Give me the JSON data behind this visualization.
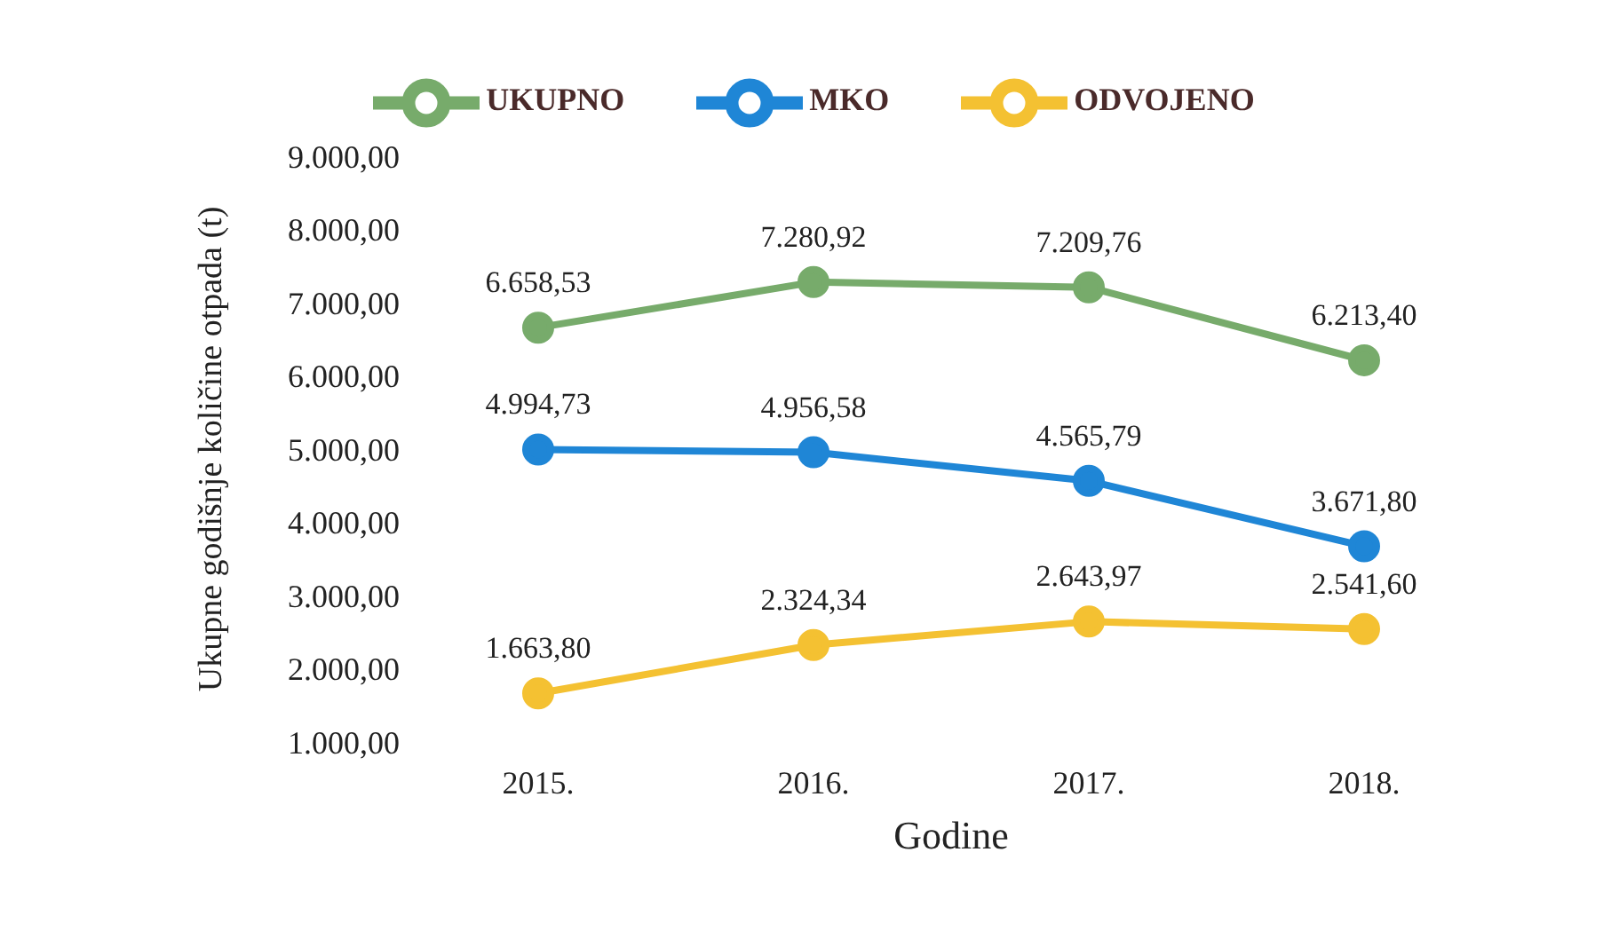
{
  "chart_data": {
    "type": "line",
    "xlabel": "Godine",
    "ylabel": "Ukupne godišnje količine otpada (t)",
    "categories": [
      "2015.",
      "2016.",
      "2017.",
      "2018."
    ],
    "series": [
      {
        "name": "UKUPNO",
        "color": "#77ab6b",
        "values": [
          6658.53,
          7280.92,
          7209.76,
          6213.4
        ],
        "value_labels": [
          "6.658,53",
          "7.280,92",
          "7.209,76",
          "6.213,40"
        ]
      },
      {
        "name": "MKO",
        "color": "#1f86d6",
        "values": [
          4994.73,
          4956.58,
          4565.79,
          3671.8
        ],
        "value_labels": [
          "4.994,73",
          "4.956,58",
          "4.565,79",
          "3.671,80"
        ]
      },
      {
        "name": "ODVOJENO",
        "color": "#f4c132",
        "values": [
          1663.8,
          2324.34,
          2643.97,
          2541.6
        ],
        "value_labels": [
          "1.663,80",
          "2.324,34",
          "2.643,97",
          "2.541,60"
        ]
      }
    ],
    "ylim": [
      1000,
      9000
    ],
    "yticks": [
      {
        "value": 1000,
        "label": "1.000,00"
      },
      {
        "value": 2000,
        "label": "2.000,00"
      },
      {
        "value": 3000,
        "label": "3.000,00"
      },
      {
        "value": 4000,
        "label": "4.000,00"
      },
      {
        "value": 5000,
        "label": "5.000,00"
      },
      {
        "value": 6000,
        "label": "6.000,00"
      },
      {
        "value": 7000,
        "label": "7.000,00"
      },
      {
        "value": 8000,
        "label": "8.000,00"
      },
      {
        "value": 9000,
        "label": "9.000,00"
      }
    ],
    "legend": "top",
    "marker": "circle",
    "line_style": "solid"
  }
}
